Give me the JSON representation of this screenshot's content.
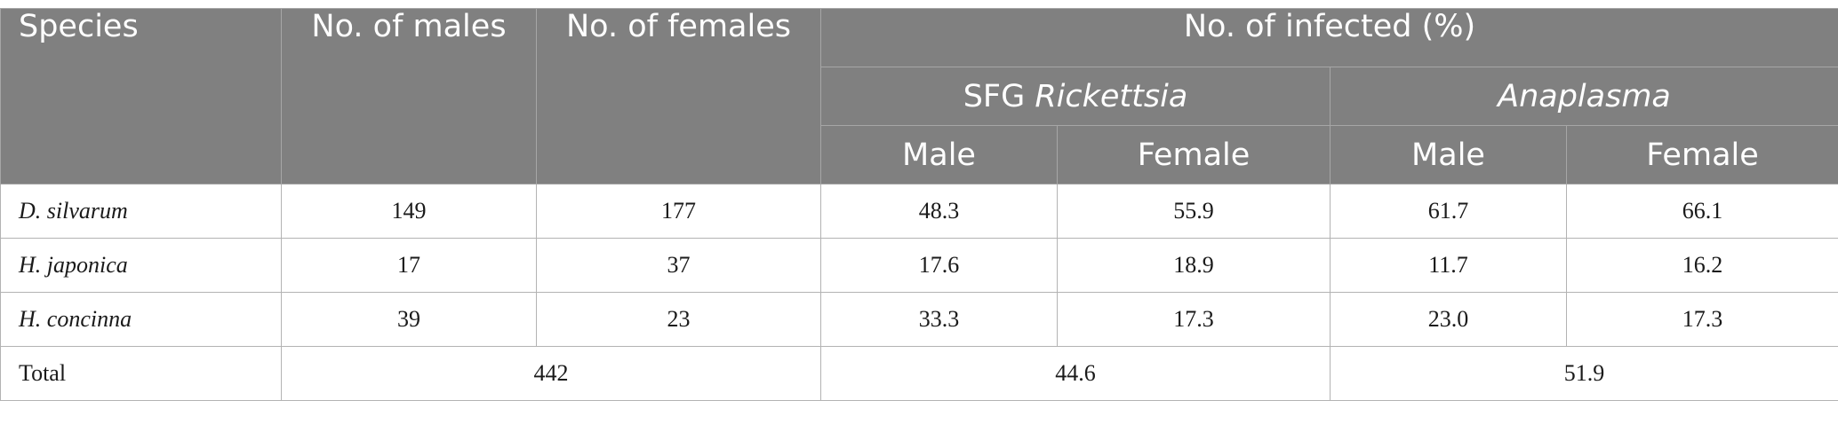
{
  "header": {
    "species": "Species",
    "males": "No. of males",
    "females": "No. of females",
    "infected": "No. of infected (%)",
    "sfg_prefix": "SFG ",
    "sfg_genus": "Rickettsia",
    "anaplasma": "Anaplasma",
    "male": "Male",
    "female": "Female"
  },
  "rows": [
    {
      "species": "D. silvarum",
      "males": "149",
      "females": "177",
      "r_male": "48.3",
      "r_female": "55.9",
      "a_male": "61.7",
      "a_female": "66.1"
    },
    {
      "species": "H. japonica",
      "males": "17",
      "females": "37",
      "r_male": "17.6",
      "r_female": "18.9",
      "a_male": "11.7",
      "a_female": "16.2"
    },
    {
      "species": "H. concinna",
      "males": "39",
      "females": "23",
      "r_male": "33.3",
      "r_female": "17.3",
      "a_male": "23.0",
      "a_female": "17.3"
    }
  ],
  "total": {
    "label": "Total",
    "count": "442",
    "rickettsia": "44.6",
    "anaplasma": "51.9"
  }
}
